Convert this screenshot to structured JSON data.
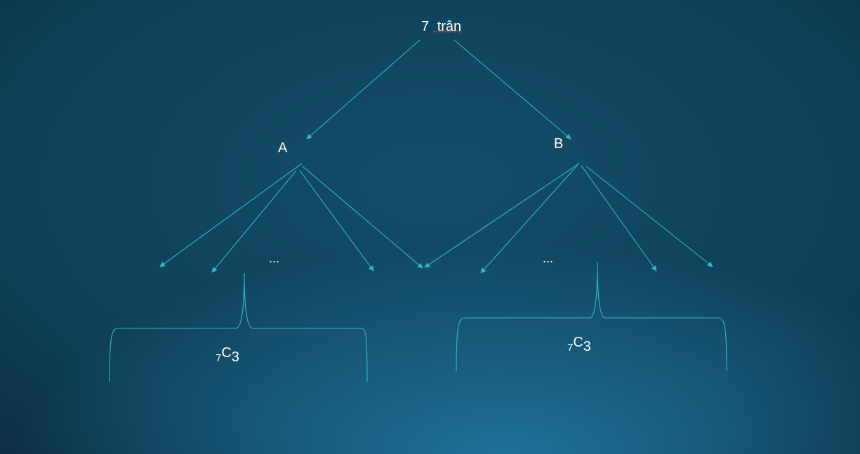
{
  "diagram": {
    "root": {
      "prefix": "7",
      "word": "trân"
    },
    "node_a": "A",
    "node_b": "B",
    "ellipsis_left": "...",
    "ellipsis_right": "...",
    "combo_left": {
      "pre": "7",
      "main": "C",
      "post": "3"
    },
    "combo_right": {
      "pre": "7",
      "main": "C",
      "post": "3"
    }
  },
  "colors": {
    "edge": "#34b7c4",
    "text": "#ffffff",
    "spellcheck": "#d43a3a"
  }
}
